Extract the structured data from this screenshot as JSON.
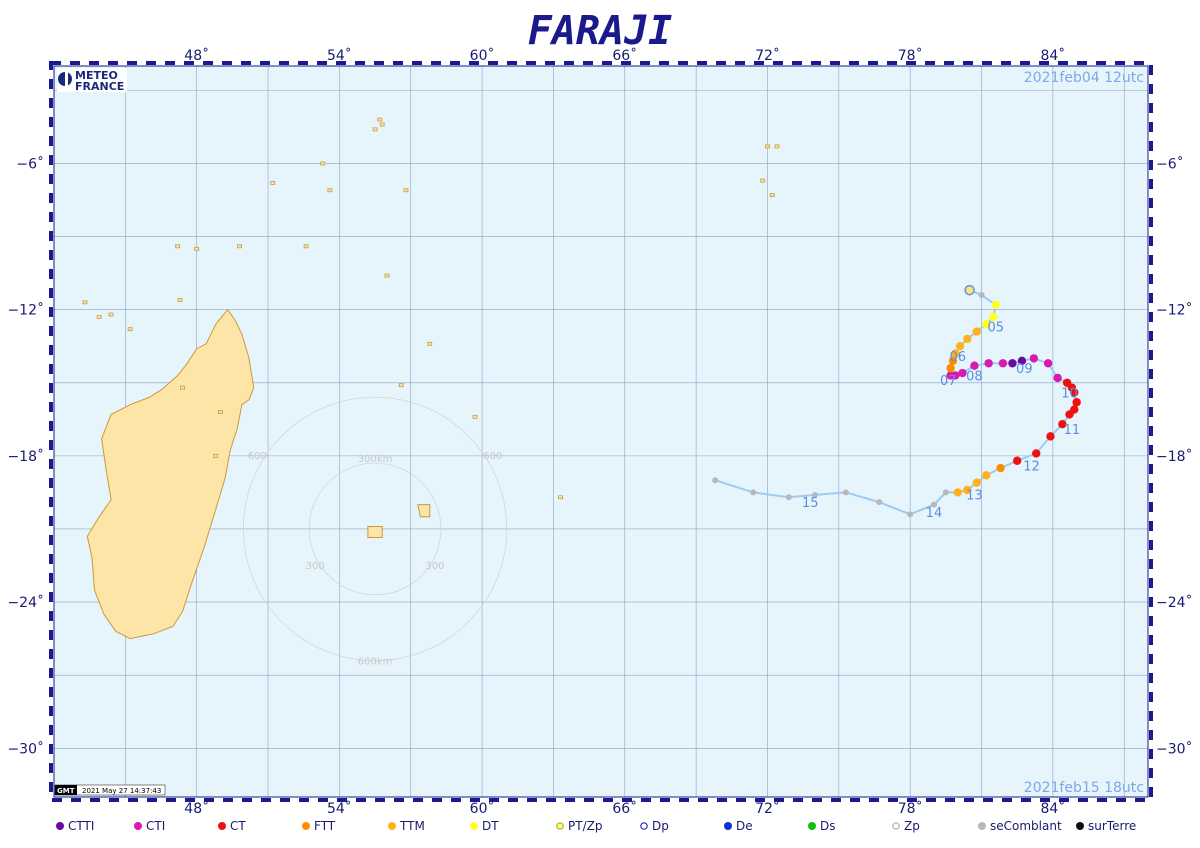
{
  "title": "FARAJI",
  "start_date": "2021feb04  12utc",
  "end_date": "2021feb15  18utc",
  "logo": {
    "line1": "METEO",
    "line2": "FRANCE"
  },
  "stamp": "2021 May 27 14:37:43",
  "stamp_logo": "GMT",
  "map": {
    "lon_range": [
      42,
      88
    ],
    "lat_range": [
      -32,
      -2
    ],
    "lon_ticks": [
      48,
      54,
      60,
      66,
      72,
      78,
      84
    ],
    "lon_labels": [
      "48˚",
      "54˚",
      "60˚",
      "66˚",
      "72˚",
      "78˚",
      "84˚"
    ],
    "lat_ticks": [
      -6,
      -12,
      -18,
      -24,
      -30
    ],
    "lat_labels": [
      "−6˚",
      "−12˚",
      "−18˚",
      "−24˚",
      "−30˚"
    ],
    "grid_lon_step": 3,
    "grid_lat_step": 3,
    "colors": {
      "ocean": "#e6f5fc",
      "land": "#fde5a8",
      "coast": "#c99a3a",
      "grid": "#8da0c8",
      "track": "#9ccbf2",
      "frame": "#1a1a8c"
    }
  },
  "range_rings": {
    "center": [
      55.5,
      -21.0
    ],
    "radii_km": [
      300,
      600
    ],
    "labels": [
      "300km",
      "600km",
      "300",
      "300",
      "600",
      "600"
    ]
  },
  "track": [
    {
      "lon": 69.8,
      "lat": -19.0,
      "cat": "seComblant"
    },
    {
      "lon": 71.4,
      "lat": -19.5,
      "cat": "seComblant"
    },
    {
      "lon": 72.9,
      "lat": -19.7,
      "cat": "seComblant"
    },
    {
      "lon": 74.0,
      "lat": -19.6,
      "cat": "seComblant"
    },
    {
      "lon": 75.3,
      "lat": -19.5,
      "cat": "seComblant"
    },
    {
      "lon": 76.7,
      "lat": -19.9,
      "cat": "seComblant"
    },
    {
      "lon": 78.0,
      "lat": -20.4,
      "cat": "seComblant"
    },
    {
      "lon": 79.0,
      "lat": -20.0,
      "cat": "seComblant"
    },
    {
      "lon": 79.5,
      "lat": -19.5,
      "cat": "seComblant"
    },
    {
      "lon": 80.0,
      "lat": -19.5,
      "cat": "TTM"
    },
    {
      "lon": 80.4,
      "lat": -19.4,
      "cat": "TTM"
    },
    {
      "lon": 80.8,
      "lat": -19.1,
      "cat": "TTM"
    },
    {
      "lon": 81.2,
      "lat": -18.8,
      "cat": "TTM"
    },
    {
      "lon": 81.8,
      "lat": -18.5,
      "cat": "FTT"
    },
    {
      "lon": 82.5,
      "lat": -18.2,
      "cat": "CT"
    },
    {
      "lon": 83.3,
      "lat": -17.9,
      "cat": "CT"
    },
    {
      "lon": 83.9,
      "lat": -17.2,
      "cat": "CT"
    },
    {
      "lon": 84.4,
      "lat": -16.7,
      "cat": "CT"
    },
    {
      "lon": 84.7,
      "lat": -16.3,
      "cat": "CT"
    },
    {
      "lon": 84.9,
      "lat": -16.1,
      "cat": "CT"
    },
    {
      "lon": 85.0,
      "lat": -15.8,
      "cat": "CT"
    },
    {
      "lon": 84.9,
      "lat": -15.4,
      "cat": "CT"
    },
    {
      "lon": 84.8,
      "lat": -15.2,
      "cat": "CT"
    },
    {
      "lon": 84.6,
      "lat": -15.0,
      "cat": "CT"
    },
    {
      "lon": 84.2,
      "lat": -14.8,
      "cat": "CTI"
    },
    {
      "lon": 83.8,
      "lat": -14.2,
      "cat": "CTI"
    },
    {
      "lon": 83.2,
      "lat": -14.0,
      "cat": "CTI"
    },
    {
      "lon": 82.7,
      "lat": -14.1,
      "cat": "CTTI"
    },
    {
      "lon": 82.3,
      "lat": -14.2,
      "cat": "CTTI"
    },
    {
      "lon": 81.9,
      "lat": -14.2,
      "cat": "CTI"
    },
    {
      "lon": 81.3,
      "lat": -14.2,
      "cat": "CTI"
    },
    {
      "lon": 80.7,
      "lat": -14.3,
      "cat": "CTI"
    },
    {
      "lon": 80.2,
      "lat": -14.6,
      "cat": "CTI"
    },
    {
      "lon": 79.9,
      "lat": -14.7,
      "cat": "CTI"
    },
    {
      "lon": 79.7,
      "lat": -14.7,
      "cat": "CTI"
    },
    {
      "lon": 79.7,
      "lat": -14.4,
      "cat": "FTT"
    },
    {
      "lon": 79.8,
      "lat": -14.1,
      "cat": "FTT"
    },
    {
      "lon": 79.9,
      "lat": -13.8,
      "cat": "TTM"
    },
    {
      "lon": 80.1,
      "lat": -13.5,
      "cat": "TTM"
    },
    {
      "lon": 80.4,
      "lat": -13.2,
      "cat": "TTM"
    },
    {
      "lon": 80.8,
      "lat": -12.9,
      "cat": "TTM"
    },
    {
      "lon": 81.2,
      "lat": -12.6,
      "cat": "DT"
    },
    {
      "lon": 81.5,
      "lat": -12.3,
      "cat": "DT"
    },
    {
      "lon": 81.6,
      "lat": -11.8,
      "cat": "DT"
    },
    {
      "lon": 81.0,
      "lat": -11.4,
      "cat": "seComblant"
    },
    {
      "lon": 80.5,
      "lat": -11.2,
      "cat": "Dp"
    }
  ],
  "day_labels": [
    {
      "text": "05",
      "lon": 81.6,
      "lat": -12.9
    },
    {
      "text": "06",
      "lon": 80.0,
      "lat": -14.1
    },
    {
      "text": "07",
      "lon": 79.6,
      "lat": -15.1
    },
    {
      "text": "08",
      "lon": 80.7,
      "lat": -14.9
    },
    {
      "text": "09",
      "lon": 82.8,
      "lat": -14.6
    },
    {
      "text": "10",
      "lon": 84.7,
      "lat": -15.6
    },
    {
      "text": "11",
      "lon": 84.8,
      "lat": -17.1
    },
    {
      "text": "12",
      "lon": 83.1,
      "lat": -18.6
    },
    {
      "text": "13",
      "lon": 80.7,
      "lat": -19.8
    },
    {
      "text": "14",
      "lon": 79.0,
      "lat": -20.5
    },
    {
      "text": "15",
      "lon": 73.8,
      "lat": -20.1
    }
  ],
  "legend": [
    {
      "label": "CTTI",
      "color": "#6a0aa0",
      "style": "fill"
    },
    {
      "label": "CTI",
      "color": "#d81ab0",
      "style": "fill"
    },
    {
      "label": "CT",
      "color": "#f01010",
      "style": "fill"
    },
    {
      "label": "FTT",
      "color": "#ff8c00",
      "style": "fill"
    },
    {
      "label": "TTM",
      "color": "#ffb21e",
      "style": "fill"
    },
    {
      "label": "DT",
      "color": "#ffff20",
      "style": "fill"
    },
    {
      "label": "PT/Zp",
      "color": "#ffff80",
      "style": "ring",
      "stroke": "#b0b030"
    },
    {
      "label": "Dp",
      "color": "#2030c0",
      "style": "ring"
    },
    {
      "label": "De",
      "color": "#1030d0",
      "style": "fill"
    },
    {
      "label": "Ds",
      "color": "#10c010",
      "style": "fill"
    },
    {
      "label": "Zp",
      "color": "#b0b0b0",
      "style": "ring"
    },
    {
      "label": "seComblant",
      "color": "#b8b8b8",
      "style": "fill"
    },
    {
      "label": "surTerre",
      "color": "#101010",
      "style": "fill"
    }
  ]
}
